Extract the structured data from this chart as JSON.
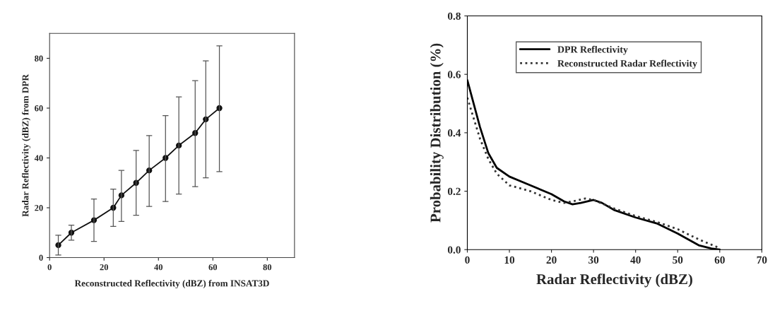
{
  "chart_data": [
    {
      "type": "line",
      "xlabel": "Reconstructed Reflectivity (dBZ) from INSAT3D",
      "ylabel": "Radar Reflectivity (dBZ) from DPR",
      "xlim": [
        0,
        90
      ],
      "ylim": [
        0,
        90
      ],
      "xticks": [
        0,
        20,
        40,
        60,
        80
      ],
      "yticks": [
        0,
        20,
        40,
        60,
        80
      ],
      "grid": false,
      "legend": false,
      "marker": "circle",
      "line_style": "solid",
      "series": [
        {
          "color": "#111111",
          "x": [
            3.2,
            8,
            16.3,
            23.4,
            26.4,
            31.8,
            36.6,
            42.6,
            47.5,
            53.5,
            57.4,
            62.4
          ],
          "values": [
            5,
            10,
            15,
            20,
            25,
            30,
            35,
            40,
            45,
            50,
            55.5,
            60
          ],
          "errors": [
            [
              1,
              9
            ],
            [
              7,
              13
            ],
            [
              6.5,
              23.5
            ],
            [
              12.5,
              27.5
            ],
            [
              14.5,
              35
            ],
            [
              17,
              43
            ],
            [
              20.5,
              49
            ],
            [
              22.5,
              57
            ],
            [
              25.5,
              64.5
            ],
            [
              28.5,
              71
            ],
            [
              32,
              79
            ],
            [
              34.5,
              85
            ]
          ]
        }
      ]
    },
    {
      "type": "line",
      "xlabel": "Radar Reflectivity (dBZ)",
      "ylabel": "Probability Distribution (%)",
      "xlim": [
        0,
        70
      ],
      "ylim": [
        0,
        0.8
      ],
      "xticks": [
        0,
        10,
        20,
        30,
        40,
        50,
        60,
        70
      ],
      "yticks": [
        {
          "value": 0,
          "label": "0.0"
        },
        0.2,
        0.4,
        0.6,
        0.8
      ],
      "grid": false,
      "legend": "top",
      "marker": "none",
      "series": [
        {
          "name": "DPR Reflectivity",
          "color": "#000000",
          "line_style": "solid",
          "x": [
            0,
            3,
            5,
            7,
            10,
            15,
            20,
            23,
            25,
            27,
            30,
            32,
            35,
            40,
            45,
            50,
            55,
            58,
            60
          ],
          "values": [
            0.58,
            0.42,
            0.33,
            0.28,
            0.25,
            0.22,
            0.19,
            0.165,
            0.155,
            0.16,
            0.17,
            0.16,
            0.135,
            0.11,
            0.09,
            0.055,
            0.015,
            0.004,
            0
          ]
        },
        {
          "name": "Reconstructed Radar Reflectivity",
          "color": "#333333",
          "line_style": "dotted",
          "x": [
            0,
            3,
            5,
            7,
            10,
            15,
            20,
            23,
            25,
            28,
            30,
            35,
            40,
            45,
            50,
            55,
            60
          ],
          "values": [
            0.52,
            0.38,
            0.31,
            0.26,
            0.22,
            0.2,
            0.17,
            0.16,
            0.165,
            0.175,
            0.17,
            0.14,
            0.115,
            0.095,
            0.07,
            0.035,
            0.005
          ]
        }
      ]
    }
  ]
}
